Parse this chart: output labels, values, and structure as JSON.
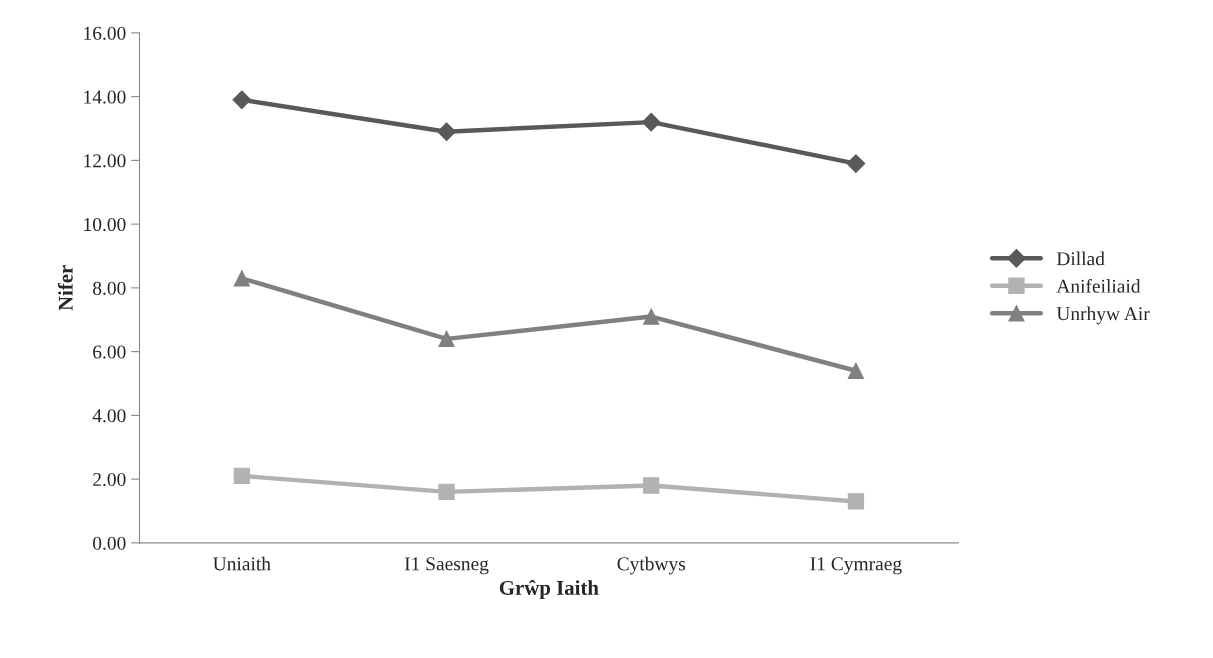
{
  "chart_data": {
    "type": "line",
    "xlabel": "Grŵp Iaith",
    "ylabel": "Nifer",
    "categories": [
      "Uniaith",
      "I1 Saesneg",
      "Cytbwys",
      "I1 Cymraeg"
    ],
    "series": [
      {
        "name": "Dillad",
        "color": "#595959",
        "marker": "diamond",
        "values": [
          13.9,
          12.9,
          13.2,
          11.9
        ]
      },
      {
        "name": "Anifeiliaid",
        "color": "#b2b2b2",
        "marker": "square",
        "values": [
          2.1,
          1.6,
          1.8,
          1.3
        ]
      },
      {
        "name": "Unrhyw Air",
        "color": "#808080",
        "marker": "triangle",
        "values": [
          8.3,
          6.4,
          7.1,
          5.4
        ]
      }
    ],
    "ylim": [
      0,
      16
    ],
    "yticks": [
      {
        "value": 0,
        "label": "0.00"
      },
      {
        "value": 2,
        "label": "2.00"
      },
      {
        "value": 4,
        "label": "4.00"
      },
      {
        "value": 6,
        "label": "6.00"
      },
      {
        "value": 8,
        "label": "8.00"
      },
      {
        "value": 10,
        "label": "10.00"
      },
      {
        "value": 12,
        "label": "12.00"
      },
      {
        "value": 14,
        "label": "14.00"
      },
      {
        "value": 16,
        "label": "16.00"
      }
    ],
    "grid": false,
    "legend": "right",
    "line_style": "solid"
  }
}
